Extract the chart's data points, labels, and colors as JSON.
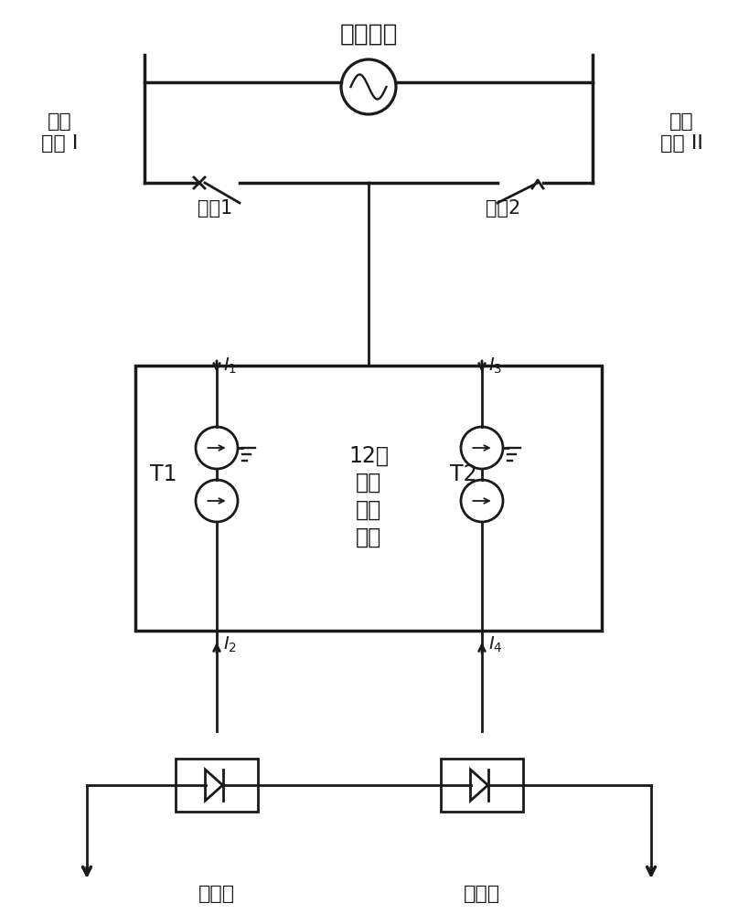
{
  "bg_color": "#ffffff",
  "lc": "#1a1a1a",
  "lw": 2.0,
  "label_waidi": "外部电网",
  "label_busI": "换流\n母线 I",
  "label_busII": "换流\n母线 II",
  "label_sw1": "开关1",
  "label_sw2": "开关2",
  "label_T1": "T1",
  "label_T2": "T2",
  "label_12pulse": "12脉\n动换\n流变\n压器",
  "label_valve1": "换流阀",
  "label_valve2": "换流阀"
}
